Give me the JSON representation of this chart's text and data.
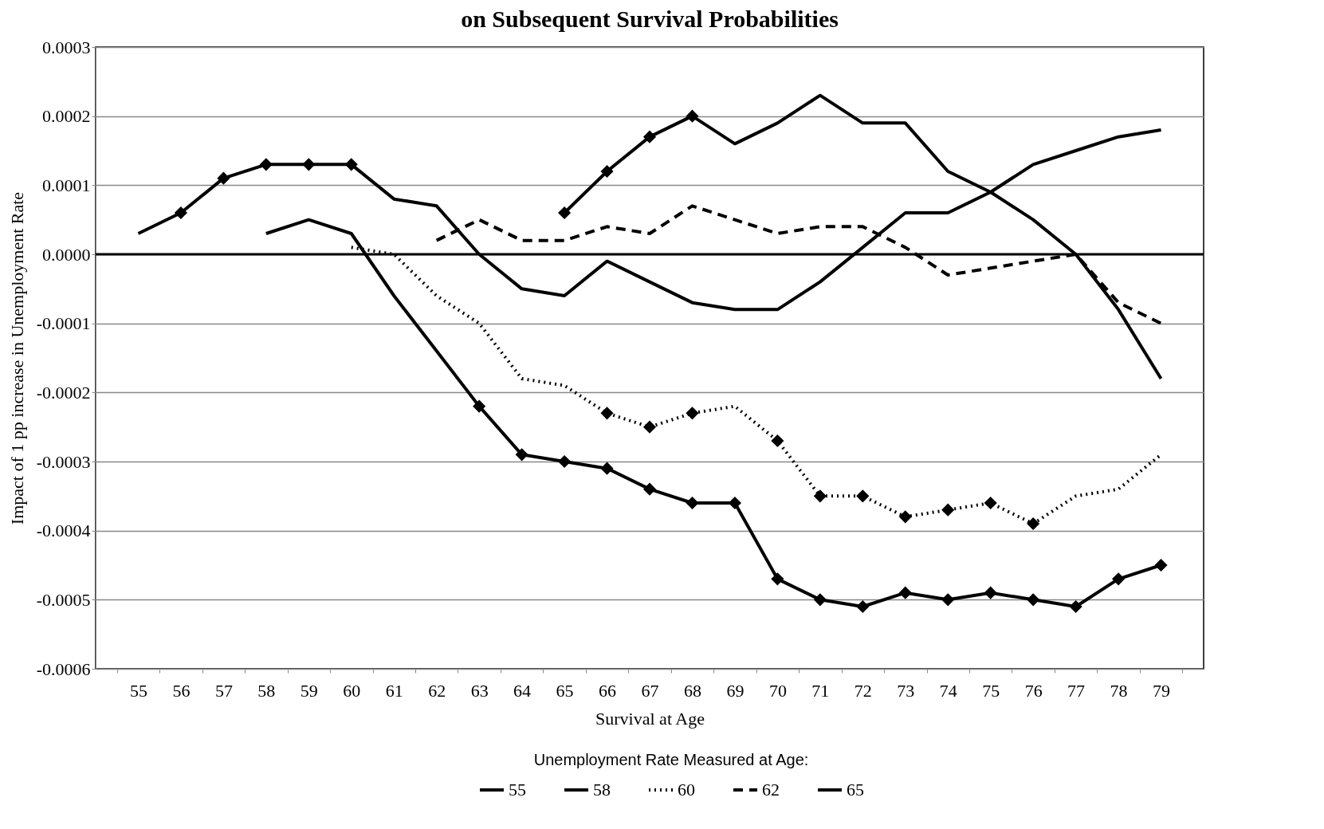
{
  "chart_data": {
    "type": "line",
    "title": "on Subsequent Survival Probabilities",
    "xlabel": "Survival at Age",
    "ylabel": "Impact of 1 pp increase in Unemployment Rate",
    "legend_title": "Unemployment Rate Measured at Age:",
    "legend": "bottom",
    "grid": "y",
    "marker": "none",
    "categories": [
      "55",
      "56",
      "57",
      "58",
      "59",
      "60",
      "61",
      "62",
      "63",
      "64",
      "65",
      "66",
      "67",
      "68",
      "69",
      "70",
      "71",
      "72",
      "73",
      "74",
      "75",
      "76",
      "77",
      "78",
      "79"
    ],
    "ylim": [
      -0.0006,
      0.0003
    ],
    "yticks": [
      {
        "value": -0.0006,
        "label": "-0.0006"
      },
      {
        "value": -0.0005,
        "label": "-0.0005"
      },
      {
        "value": -0.0004,
        "label": "-0.0004"
      },
      {
        "value": -0.0003,
        "label": "-0.0003"
      },
      {
        "value": -0.0002,
        "label": "-0.0002"
      },
      {
        "value": -0.0001,
        "label": "-0.0001"
      },
      {
        "value": 0,
        "label": "0.0000"
      },
      {
        "value": 0.0001,
        "label": "0.0001"
      },
      {
        "value": 0.0002,
        "label": "0.0002"
      },
      {
        "value": 0.0003,
        "label": "0.0003"
      }
    ],
    "ref_lines": [
      {
        "axis": "y",
        "value": 0,
        "color": "#000000",
        "line_style": "solid"
      }
    ],
    "series": [
      {
        "name": "55",
        "color": "#000000",
        "line_style": "solid",
        "values": [
          3e-05,
          6e-05,
          0.00011,
          0.00013,
          0.00013,
          0.00013,
          8e-05,
          7e-05,
          0.0,
          -5e-05,
          -6e-05,
          -1e-05,
          -4e-05,
          -7e-05,
          -8e-05,
          -8e-05,
          -4e-05,
          1e-05,
          6e-05,
          6e-05,
          9e-05,
          0.00013,
          0.00015,
          0.00017,
          0.00018
        ]
      },
      {
        "name": "58",
        "color": "#000000",
        "line_style": "solid",
        "values": [
          null,
          null,
          null,
          3e-05,
          5e-05,
          3e-05,
          -6e-05,
          -0.00014,
          -0.00022,
          -0.00029,
          -0.0003,
          -0.00031,
          -0.00034,
          -0.00036,
          -0.00036,
          -0.00047,
          -0.0005,
          -0.00051,
          -0.00049,
          -0.0005,
          -0.00049,
          -0.0005,
          -0.00051,
          -0.00047,
          -0.00045
        ]
      },
      {
        "name": "60",
        "color": "#000000",
        "line_style": "dotted",
        "values": [
          null,
          null,
          null,
          null,
          null,
          1e-05,
          0.0,
          -6e-05,
          -0.0001,
          -0.00018,
          -0.00019,
          -0.00023,
          -0.00025,
          -0.00023,
          -0.00022,
          -0.00027,
          -0.00035,
          -0.00035,
          -0.00038,
          -0.00037,
          -0.00036,
          -0.00039,
          -0.00035,
          -0.00034,
          -0.00029
        ]
      },
      {
        "name": "62",
        "color": "#000000",
        "line_style": "dashed",
        "values": [
          null,
          null,
          null,
          null,
          null,
          null,
          null,
          2e-05,
          5e-05,
          2e-05,
          2e-05,
          4e-05,
          3e-05,
          7e-05,
          5e-05,
          3e-05,
          4e-05,
          4e-05,
          1e-05,
          -3e-05,
          -2e-05,
          -1e-05,
          0.0,
          -7e-05,
          -0.0001
        ]
      },
      {
        "name": "65",
        "color": "#000000",
        "line_style": "solid",
        "values": [
          null,
          null,
          null,
          null,
          null,
          null,
          null,
          null,
          null,
          null,
          6e-05,
          0.00012,
          0.00017,
          0.0002,
          0.00016,
          0.00019,
          0.00023,
          0.00019,
          0.00019,
          0.00012,
          9e-05,
          5e-05,
          0.0,
          -8e-05,
          -0.00018
        ]
      },
      {
        "type": "scatter",
        "marker": "diamond",
        "color": "#000000",
        "x": [
          "56",
          "57",
          "58",
          "59",
          "60"
        ],
        "values": [
          6e-05,
          0.00011,
          0.00013,
          0.00013,
          0.00013
        ]
      },
      {
        "type": "scatter",
        "marker": "diamond",
        "color": "#000000",
        "x": [
          "63",
          "64",
          "65",
          "66",
          "67",
          "68",
          "69",
          "70",
          "71",
          "72",
          "73",
          "74",
          "75",
          "76",
          "77",
          "78",
          "79"
        ],
        "values": [
          -0.00022,
          -0.00029,
          -0.0003,
          -0.00031,
          -0.00034,
          -0.00036,
          -0.00036,
          -0.00047,
          -0.0005,
          -0.00051,
          -0.00049,
          -0.0005,
          -0.00049,
          -0.0005,
          -0.00051,
          -0.00047,
          -0.00045
        ]
      },
      {
        "type": "scatter",
        "marker": "diamond",
        "color": "#000000",
        "x": [
          "66",
          "67",
          "68",
          "70",
          "71",
          "72",
          "73",
          "74",
          "75",
          "76"
        ],
        "values": [
          -0.00023,
          -0.00025,
          -0.00023,
          -0.00027,
          -0.00035,
          -0.00035,
          -0.00038,
          -0.00037,
          -0.00036,
          -0.00039
        ]
      },
      {
        "type": "scatter",
        "marker": "diamond",
        "color": "#000000",
        "x": [
          "65",
          "66",
          "67",
          "68"
        ],
        "values": [
          6e-05,
          0.00012,
          0.00017,
          0.0002
        ]
      }
    ]
  }
}
